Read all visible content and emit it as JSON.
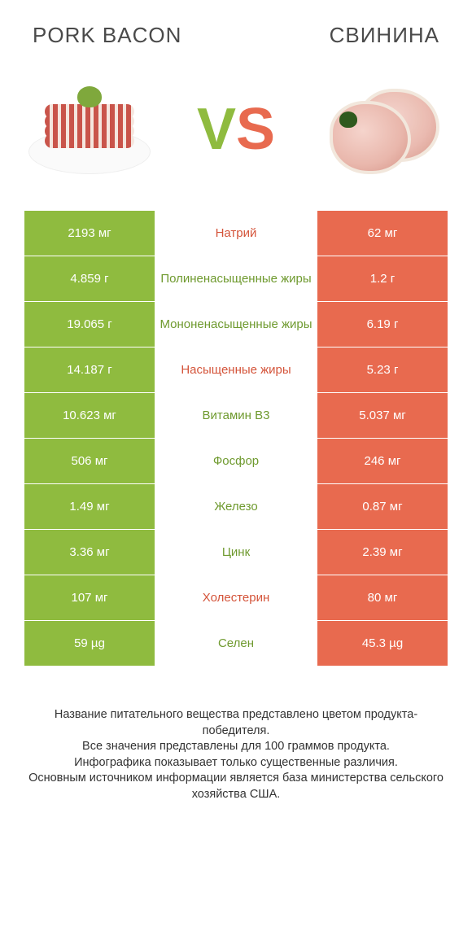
{
  "header": {
    "left_title": "PORK BACON",
    "right_title": "СВИНИНА"
  },
  "vs": {
    "v": "V",
    "s": "S"
  },
  "colors": {
    "green": "#8fbb3f",
    "green_dim": "#97bb56",
    "orange": "#e86a4f",
    "orange_dim": "#e77b60",
    "label_green": "#6f9a2f",
    "label_orange": "#d4543a",
    "row_border": "#ffffff",
    "background": "#ffffff",
    "text": "#4a4a4a"
  },
  "table": {
    "rows": [
      {
        "label": "Натрий",
        "left": "2193 мг",
        "right": "62 мг",
        "label_color": "#d4543a",
        "left_bg": "#8fbb3f",
        "right_bg": "#e86a4f"
      },
      {
        "label": "Полиненасыщенные жиры",
        "left": "4.859 г",
        "right": "1.2 г",
        "label_color": "#6f9a2f",
        "left_bg": "#8fbb3f",
        "right_bg": "#e86a4f"
      },
      {
        "label": "Мононенасыщенные жиры",
        "left": "19.065 г",
        "right": "6.19 г",
        "label_color": "#6f9a2f",
        "left_bg": "#8fbb3f",
        "right_bg": "#e86a4f"
      },
      {
        "label": "Насыщенные жиры",
        "left": "14.187 г",
        "right": "5.23 г",
        "label_color": "#d4543a",
        "left_bg": "#8fbb3f",
        "right_bg": "#e86a4f"
      },
      {
        "label": "Витамин B3",
        "left": "10.623 мг",
        "right": "5.037 мг",
        "label_color": "#6f9a2f",
        "left_bg": "#8fbb3f",
        "right_bg": "#e86a4f"
      },
      {
        "label": "Фосфор",
        "left": "506 мг",
        "right": "246 мг",
        "label_color": "#6f9a2f",
        "left_bg": "#8fbb3f",
        "right_bg": "#e86a4f"
      },
      {
        "label": "Железо",
        "left": "1.49 мг",
        "right": "0.87 мг",
        "label_color": "#6f9a2f",
        "left_bg": "#8fbb3f",
        "right_bg": "#e86a4f"
      },
      {
        "label": "Цинк",
        "left": "3.36 мг",
        "right": "2.39 мг",
        "label_color": "#6f9a2f",
        "left_bg": "#8fbb3f",
        "right_bg": "#e86a4f"
      },
      {
        "label": "Холестерин",
        "left": "107 мг",
        "right": "80 мг",
        "label_color": "#d4543a",
        "left_bg": "#8fbb3f",
        "right_bg": "#e86a4f"
      },
      {
        "label": "Селен",
        "left": "59 µg",
        "right": "45.3 µg",
        "label_color": "#6f9a2f",
        "left_bg": "#8fbb3f",
        "right_bg": "#e86a4f"
      }
    ]
  },
  "footer": {
    "line1": "Название питательного вещества представлено цветом продукта-победителя.",
    "line2": "Все значения представлены для 100 граммов продукта.",
    "line3": "Инфографика показывает только существенные различия.",
    "line4": "Основным источником информации является база министерства сельского хозяйства США."
  }
}
